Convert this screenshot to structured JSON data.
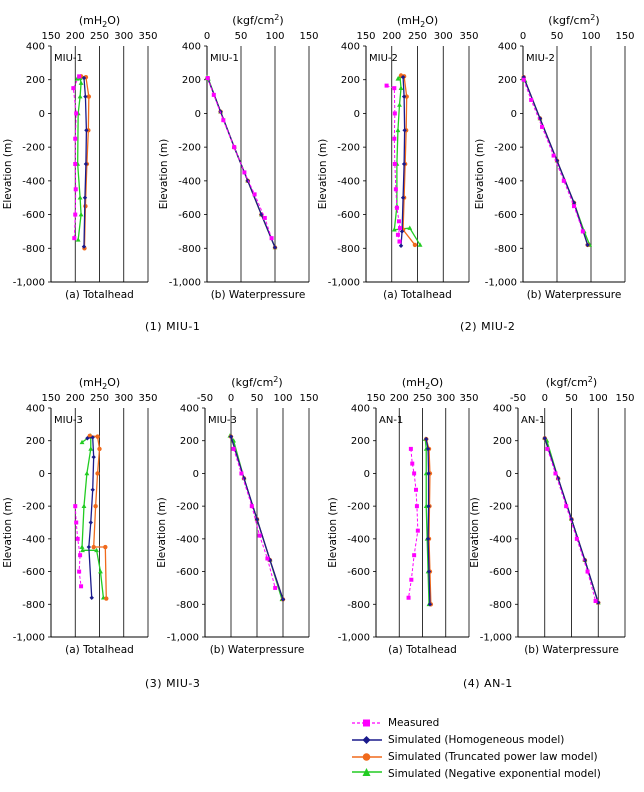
{
  "colors": {
    "measured": "#ff00ff",
    "homogeneous": "#1a1a8c",
    "truncated": "#f06a1c",
    "negexp": "#22cc22"
  },
  "captions": [
    "(1) MIU-1",
    "(2) MIU-2",
    "(3) MIU-3",
    "(4) AN-1"
  ],
  "legend": [
    {
      "key": "measured",
      "label": "Measured"
    },
    {
      "key": "homogeneous",
      "label": "Simulated (Homogeneous model)"
    },
    {
      "key": "truncated",
      "label": "Simulated (Truncated power law model)"
    },
    {
      "key": "negexp",
      "label": "Simulated (Negative exponential model)"
    }
  ],
  "chart_data": [
    {
      "type": "line",
      "panel": "MIU-1",
      "title": "(mH2O)",
      "xlabel": "(a) Totalhead",
      "ylabel": "Elevation (m)",
      "xlim": [
        150,
        350
      ],
      "xticks": [
        150,
        200,
        250,
        300,
        350
      ],
      "ylim": [
        -1000,
        400
      ],
      "yticks": [
        400,
        200,
        0,
        -200,
        -400,
        -600,
        -800,
        -1000
      ],
      "series": [
        {
          "key": "measured",
          "x": [
            208,
            196,
            202,
            200,
            200,
            201,
            200,
            198
          ],
          "y": [
            220,
            150,
            0,
            -150,
            -300,
            -450,
            -600,
            -740
          ]
        },
        {
          "key": "homogeneous",
          "x": [
            218,
            221,
            223,
            222,
            220,
            218
          ],
          "y": [
            210,
            100,
            -100,
            -300,
            -500,
            -790
          ]
        },
        {
          "key": "truncated",
          "x": [
            212,
            222,
            228,
            227,
            224,
            221,
            219
          ],
          "y": [
            220,
            215,
            100,
            -100,
            -300,
            -550,
            -800
          ]
        },
        {
          "key": "negexp",
          "x": [
            204,
            210,
            212,
            210,
            206,
            205,
            210,
            212,
            206
          ],
          "y": [
            205,
            210,
            180,
            100,
            0,
            -300,
            -500,
            -600,
            -750
          ]
        }
      ]
    },
    {
      "type": "line",
      "panel": "MIU-1",
      "title": "(kgf/cm2)",
      "xlabel": "(b) Waterpressure",
      "ylabel": "Elevation (m)",
      "xlim": [
        0,
        150
      ],
      "xticks": [
        0,
        50,
        100,
        150
      ],
      "ylim": [
        -1000,
        400
      ],
      "yticks": [
        400,
        200,
        0,
        -200,
        -400,
        -600,
        -800,
        -1000
      ],
      "series": [
        {
          "key": "measured",
          "x": [
            1,
            10,
            24,
            40,
            55,
            70,
            85,
            95
          ],
          "y": [
            210,
            110,
            -40,
            -200,
            -350,
            -480,
            -620,
            -740
          ]
        },
        {
          "key": "homogeneous",
          "x": [
            1,
            20,
            40,
            60,
            80,
            100
          ],
          "y": [
            210,
            10,
            -200,
            -400,
            -600,
            -795
          ]
        },
        {
          "key": "truncated",
          "x": [
            1,
            20,
            40,
            60,
            80,
            100
          ],
          "y": [
            210,
            10,
            -200,
            -400,
            -600,
            -795
          ]
        },
        {
          "key": "negexp",
          "x": [
            0,
            2,
            20,
            40,
            60,
            80,
            100
          ],
          "y": [
            215,
            205,
            10,
            -200,
            -400,
            -600,
            -795
          ]
        }
      ]
    },
    {
      "type": "line",
      "panel": "MIU-2",
      "title": "(mH2O)",
      "xlabel": "(a) Totalhead",
      "ylabel": "Elevation (m)",
      "xlim": [
        150,
        350
      ],
      "xticks": [
        150,
        200,
        250,
        300,
        350
      ],
      "ylim": [
        -1000,
        400
      ],
      "yticks": [
        400,
        200,
        0,
        -200,
        -400,
        -600,
        -800,
        -1000
      ],
      "series": [
        {
          "key": "measured",
          "x": [
            190,
            205,
            206,
            205,
            206,
            208,
            210,
            214,
            216,
            212,
            215
          ],
          "y": [
            165,
            150,
            0,
            -150,
            -300,
            -450,
            -560,
            -640,
            -680,
            -720,
            -760
          ]
        },
        {
          "key": "homogeneous",
          "x": [
            222,
            224,
            225,
            224,
            222,
            220,
            218
          ],
          "y": [
            215,
            100,
            -100,
            -300,
            -500,
            -700,
            -785
          ]
        },
        {
          "key": "truncated",
          "x": [
            218,
            224,
            229,
            228,
            226,
            224,
            222,
            245
          ],
          "y": [
            225,
            220,
            100,
            -100,
            -300,
            -500,
            -690,
            -780
          ]
        },
        {
          "key": "negexp",
          "x": [
            212,
            216,
            218,
            215,
            212,
            210,
            210,
            205,
            235,
            255
          ],
          "y": [
            205,
            220,
            150,
            50,
            -100,
            -300,
            -550,
            -690,
            -680,
            -780
          ]
        }
      ]
    },
    {
      "type": "line",
      "panel": "MIU-2",
      "title": "(kgf/cm2)",
      "xlabel": "(b) Waterpressure",
      "ylabel": "Elevation (m)",
      "xlim": [
        0,
        150
      ],
      "xticks": [
        0,
        50,
        100,
        150
      ],
      "ylim": [
        -1000,
        400
      ],
      "yticks": [
        400,
        200,
        0,
        -200,
        -400,
        -600,
        -800,
        -1000
      ],
      "series": [
        {
          "key": "measured",
          "x": [
            1,
            12,
            28,
            45,
            60,
            75,
            88
          ],
          "y": [
            200,
            80,
            -80,
            -250,
            -400,
            -550,
            -700
          ]
        },
        {
          "key": "homogeneous",
          "x": [
            1,
            25,
            50,
            75,
            95
          ],
          "y": [
            215,
            -30,
            -280,
            -530,
            -780
          ]
        },
        {
          "key": "truncated",
          "x": [
            1,
            25,
            50,
            75,
            95
          ],
          "y": [
            215,
            -30,
            -280,
            -530,
            -780
          ]
        },
        {
          "key": "negexp",
          "x": [
            0,
            3,
            25,
            50,
            75,
            90,
            98
          ],
          "y": [
            210,
            195,
            -30,
            -280,
            -530,
            -700,
            -780
          ]
        }
      ]
    },
    {
      "type": "line",
      "panel": "MIU-3",
      "title": "(mH2O)",
      "xlabel": "(a) Totalhead",
      "ylabel": "Elevation (m)",
      "xlim": [
        150,
        350
      ],
      "xticks": [
        150,
        200,
        250,
        300,
        350
      ],
      "ylim": [
        -1000,
        400
      ],
      "yticks": [
        400,
        200,
        0,
        -200,
        -400,
        -600,
        -800,
        -1000
      ],
      "series": [
        {
          "key": "measured",
          "x": [
            200,
            202,
            205,
            210,
            208,
            212
          ],
          "y": [
            -200,
            -300,
            -400,
            -500,
            -600,
            -690
          ]
        },
        {
          "key": "homogeneous",
          "x": [
            225,
            236,
            238,
            236,
            232,
            228,
            234
          ],
          "y": [
            215,
            220,
            100,
            -100,
            -300,
            -450,
            -760
          ]
        },
        {
          "key": "truncated",
          "x": [
            230,
            246,
            250,
            246,
            242,
            238,
            262,
            264
          ],
          "y": [
            230,
            225,
            150,
            0,
            -200,
            -450,
            -450,
            -765
          ]
        },
        {
          "key": "negexp",
          "x": [
            214,
            232,
            232,
            224,
            218,
            214,
            215,
            244,
            252,
            258
          ],
          "y": [
            190,
            230,
            150,
            0,
            -200,
            -450,
            -470,
            -470,
            -600,
            -760
          ]
        }
      ]
    },
    {
      "type": "line",
      "panel": "MIU-3",
      "title": "(kgf/cm2)",
      "xlabel": "(b) Waterpressure",
      "ylabel": "Elevation (m)",
      "xlim": [
        -50,
        150
      ],
      "xticks": [
        -50,
        0,
        50,
        100,
        150
      ],
      "ylim": [
        -1000,
        400
      ],
      "yticks": [
        400,
        200,
        0,
        -200,
        -400,
        -600,
        -800,
        -1000
      ],
      "series": [
        {
          "key": "measured",
          "x": [
            5,
            20,
            40,
            55,
            70,
            85
          ],
          "y": [
            150,
            0,
            -200,
            -380,
            -520,
            -700
          ]
        },
        {
          "key": "homogeneous",
          "x": [
            0,
            25,
            50,
            75,
            100
          ],
          "y": [
            225,
            -30,
            -280,
            -530,
            -770
          ]
        },
        {
          "key": "truncated",
          "x": [
            0,
            25,
            50,
            75,
            100
          ],
          "y": [
            225,
            -30,
            -280,
            -530,
            -770
          ]
        },
        {
          "key": "negexp",
          "x": [
            -2,
            5,
            25,
            50,
            75,
            98
          ],
          "y": [
            230,
            200,
            -30,
            -280,
            -530,
            -770
          ]
        }
      ]
    },
    {
      "type": "line",
      "panel": "AN-1",
      "title": "(mH2O)",
      "xlabel": "(a) Totalhead",
      "ylabel": "Elevation (m)",
      "xlim": [
        150,
        350
      ],
      "xticks": [
        150,
        200,
        250,
        300,
        350
      ],
      "ylim": [
        -1000,
        400
      ],
      "yticks": [
        400,
        200,
        0,
        -200,
        -400,
        -600,
        -800,
        -1000
      ],
      "series": [
        {
          "key": "measured",
          "x": [
            225,
            228,
            232,
            236,
            238,
            240,
            232,
            226,
            220
          ],
          "y": [
            150,
            60,
            0,
            -100,
            -200,
            -350,
            -500,
            -650,
            -760
          ]
        },
        {
          "key": "homogeneous",
          "x": [
            258,
            262,
            263,
            263,
            262,
            264,
            266
          ],
          "y": [
            210,
            150,
            0,
            -200,
            -400,
            -600,
            -800
          ]
        },
        {
          "key": "truncated",
          "x": [
            258,
            264,
            266,
            265,
            264,
            266,
            268
          ],
          "y": [
            210,
            150,
            0,
            -200,
            -400,
            -600,
            -800
          ]
        },
        {
          "key": "negexp",
          "x": [
            256,
            258,
            258,
            258,
            260,
            262,
            264
          ],
          "y": [
            210,
            150,
            0,
            -200,
            -400,
            -600,
            -800
          ]
        }
      ]
    },
    {
      "type": "line",
      "panel": "AN-1",
      "title": "(kgf/cm2)",
      "xlabel": "(b) Waterpressure",
      "ylabel": "Elevation (m)",
      "xlim": [
        -50,
        150
      ],
      "xticks": [
        -50,
        0,
        50,
        100,
        150
      ],
      "ylim": [
        -1000,
        400
      ],
      "yticks": [
        400,
        200,
        0,
        -200,
        -400,
        -600,
        -800,
        -1000
      ],
      "series": [
        {
          "key": "measured",
          "x": [
            5,
            20,
            40,
            60,
            80,
            95
          ],
          "y": [
            150,
            0,
            -200,
            -400,
            -600,
            -780
          ]
        },
        {
          "key": "homogeneous",
          "x": [
            0,
            25,
            50,
            75,
            100
          ],
          "y": [
            215,
            -30,
            -280,
            -530,
            -790
          ]
        },
        {
          "key": "truncated",
          "x": [
            0,
            25,
            50,
            75,
            100
          ],
          "y": [
            215,
            -30,
            -280,
            -530,
            -790
          ]
        },
        {
          "key": "negexp",
          "x": [
            0,
            4,
            25,
            50,
            75,
            100
          ],
          "y": [
            215,
            200,
            -30,
            -280,
            -530,
            -790
          ]
        }
      ]
    }
  ]
}
